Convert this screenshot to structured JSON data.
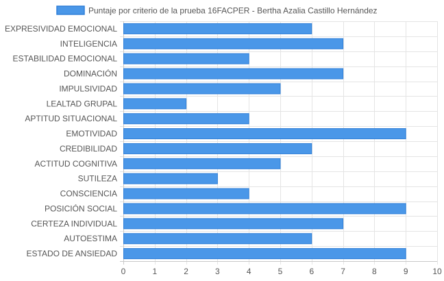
{
  "chart_data": {
    "type": "bar",
    "orientation": "horizontal",
    "categories": [
      "EXPRESIVIDAD EMOCIONAL",
      "INTELIGENCIA",
      "ESTABILIDAD EMOCIONAL",
      "DOMINACIÓN",
      "IMPULSIVIDAD",
      "LEALTAD GRUPAL",
      "APTITUD SITUACIONAL",
      "EMOTIVIDAD",
      "CREDIBILIDAD",
      "ACTITUD COGNITIVA",
      "SUTILEZA",
      "CONSCIENCIA",
      "POSICIÓN SOCIAL",
      "CERTEZA INDIVIDUAL",
      "AUTOESTIMA",
      "ESTADO DE ANSIEDAD"
    ],
    "series": [
      {
        "name": "Puntaje por criterio de la prueba 16FACPER - Bertha Azalia Castillo Hernández",
        "values": [
          6,
          7,
          4,
          7,
          5,
          2,
          4,
          9,
          6,
          5,
          3,
          4,
          9,
          7,
          6,
          9
        ]
      }
    ],
    "xlim": [
      0,
      10
    ],
    "x_ticks": [
      "0",
      "1",
      "2",
      "3",
      "4",
      "5",
      "6",
      "7",
      "8",
      "9",
      "10"
    ],
    "grid": true,
    "legend_position": "top-center",
    "colors": {
      "bar_fill": "#4a97e8",
      "bar_stroke": "#2f7fd8",
      "grid": "#e4e4e4",
      "axis": "#c9c9c9",
      "text": "#555555"
    }
  }
}
